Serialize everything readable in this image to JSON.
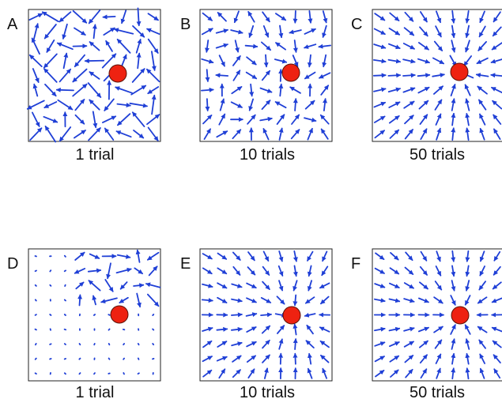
{
  "figure": {
    "colors": {
      "arrow": "#1f3fd6",
      "goal_fill": "#ee2211",
      "goal_stroke": "#5a1208",
      "frame": "#222222",
      "text": "#111111"
    },
    "top_row": [
      {
        "letter": "A",
        "caption": "1 trial",
        "field": "noisy"
      },
      {
        "letter": "B",
        "caption": "10 trials",
        "field": "partial"
      },
      {
        "letter": "C",
        "caption": "50 trials",
        "field": "converged"
      }
    ],
    "bottom_row": [
      {
        "letter": "D",
        "caption": "1 trial",
        "field": "sparse"
      },
      {
        "letter": "E",
        "caption": "10 trials",
        "field": "converging"
      },
      {
        "letter": "F",
        "caption": "50 trials",
        "field": "converged-dim"
      }
    ]
  }
}
